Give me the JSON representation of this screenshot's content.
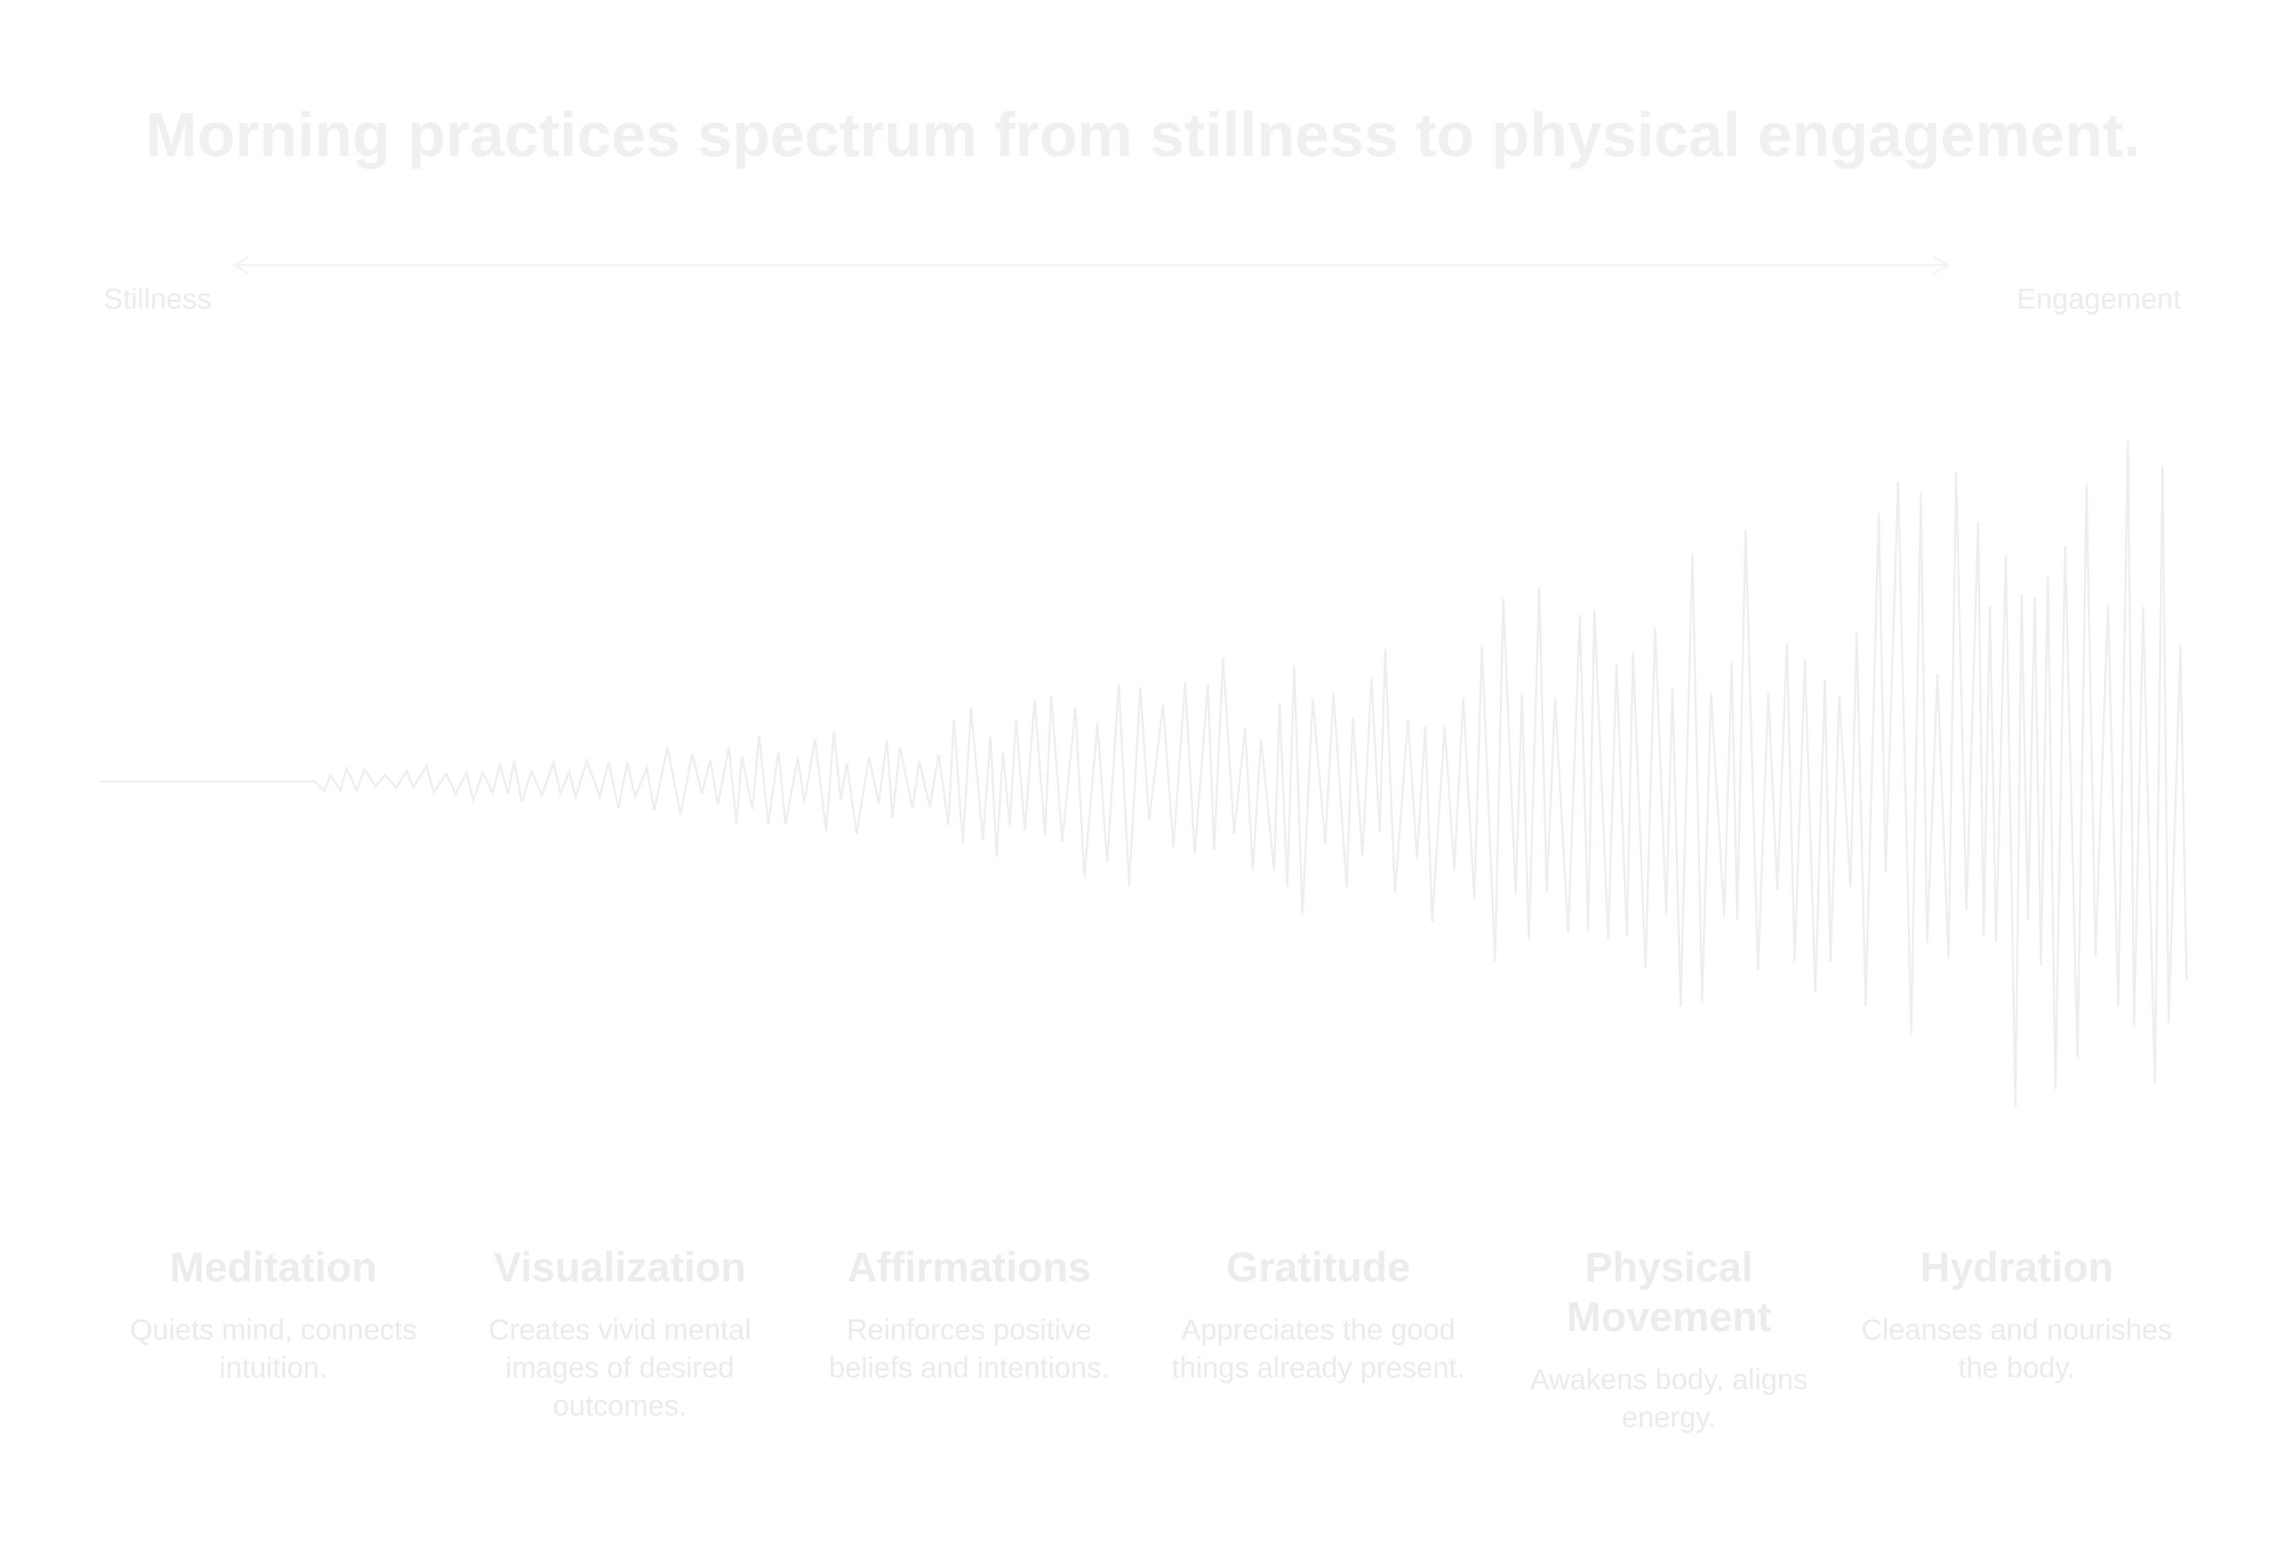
{
  "title": "Morning practices spectrum from stillness to physical engagement.",
  "axis": {
    "start_label": "Stillness",
    "end_label": "Engagement"
  },
  "colors": {
    "background": "#ffffff",
    "line": "#eeeeee",
    "text": "#ececec"
  },
  "practices": [
    {
      "name": "Meditation",
      "description": "Quiets mind, connects intuition."
    },
    {
      "name": "Visualization",
      "description": "Creates vivid mental images of desired outcomes."
    },
    {
      "name": "Affirmations",
      "description": "Reinforces positive beliefs and intentions."
    },
    {
      "name": "Gratitude",
      "description": "Appreciates the good things already present."
    },
    {
      "name": "Physical Movement",
      "description": "Awakens body, aligns energy."
    },
    {
      "name": "Hydration",
      "description": "Cleanses and nourishes the body."
    }
  ]
}
